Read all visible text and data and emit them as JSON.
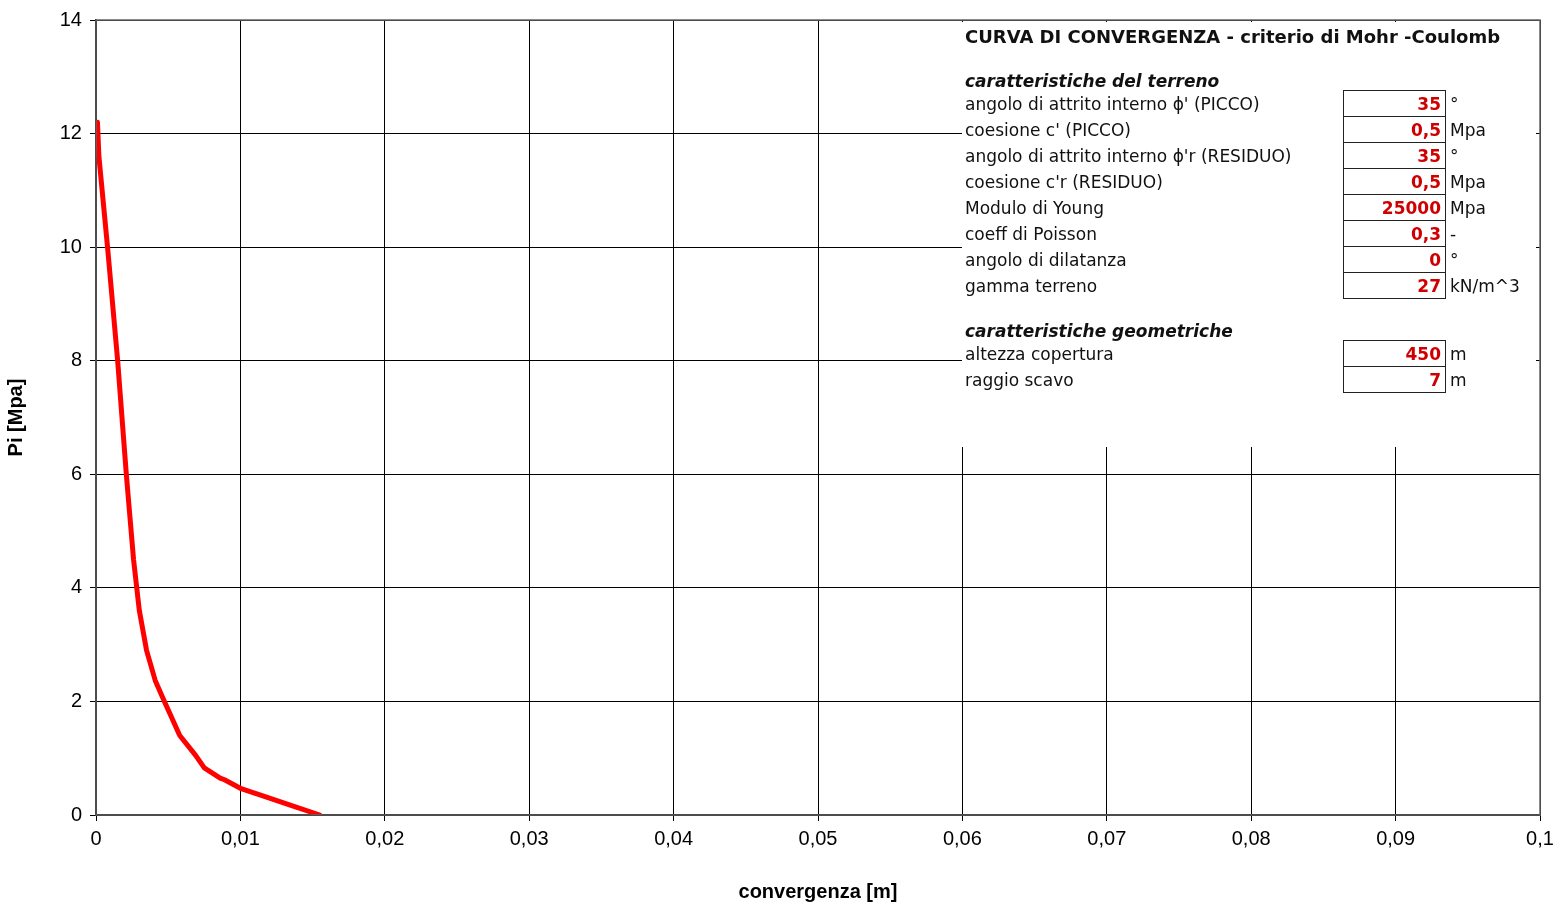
{
  "chart_data": {
    "type": "line",
    "title": "CURVA DI CONVERGENZA - criterio di Mohr -Coulomb",
    "xlabel": "convergenza [m]",
    "ylabel": "Pi [Mpa]",
    "series": [
      {
        "color": "#ff0000",
        "x": [
          0.0001,
          0.0002,
          0.0008,
          0.0015,
          0.0021,
          0.0026,
          0.003,
          0.0035,
          0.0041,
          0.0047,
          0.0058,
          0.0069,
          0.0075,
          0.0086,
          0.0089,
          0.01,
          0.0114,
          0.0134,
          0.0155
        ],
        "values": [
          12.2,
          11.6,
          10,
          8,
          6,
          4.5,
          3.6,
          2.9,
          2.37,
          2.02,
          1.4,
          1.05,
          0.83,
          0.65,
          0.62,
          0.47,
          0.35,
          0.18,
          0
        ]
      }
    ],
    "xlim": [
      0,
      0.1
    ],
    "xticks": [
      0,
      {
        "value": 0.01,
        "label": "0,01"
      },
      {
        "value": 0.02,
        "label": "0,02"
      },
      {
        "value": 0.03,
        "label": "0,03"
      },
      {
        "value": 0.04,
        "label": "0,04"
      },
      {
        "value": 0.05,
        "label": "0,05"
      },
      {
        "value": 0.06,
        "label": "0,06"
      },
      {
        "value": 0.07,
        "label": "0,07"
      },
      {
        "value": 0.08,
        "label": "0,08"
      },
      {
        "value": 0.09,
        "label": "0,09"
      },
      {
        "value": 0.1,
        "label": "0,1"
      }
    ],
    "ylim": [
      0,
      14
    ],
    "yticks": [
      0,
      2,
      4,
      6,
      8,
      10,
      12,
      14
    ],
    "grid": true,
    "legend": false,
    "marker": "none",
    "line_style": "solid",
    "annotations": [
      "caratteristiche del terreno",
      "angolo di attrito interno ϕ' (PICCO)\t35\t°",
      "coesione c' (PICCO)\t0,5\tMpa",
      "angolo di attrito interno ϕ'r (RESIDUO)\t35\t°",
      "coesione c'r (RESIDUO)\t0,5\tMpa",
      "Modulo di Young\t25000\tMpa",
      "coeff di Poisson\t0,3\t-",
      "angolo di dilatanza\t0\t°",
      "gamma terreno\t27\tkN/m^3",
      "caratteristiche geometriche",
      "altezza copertura\t450\tm",
      "raggio scavo\t7\tm"
    ]
  }
}
